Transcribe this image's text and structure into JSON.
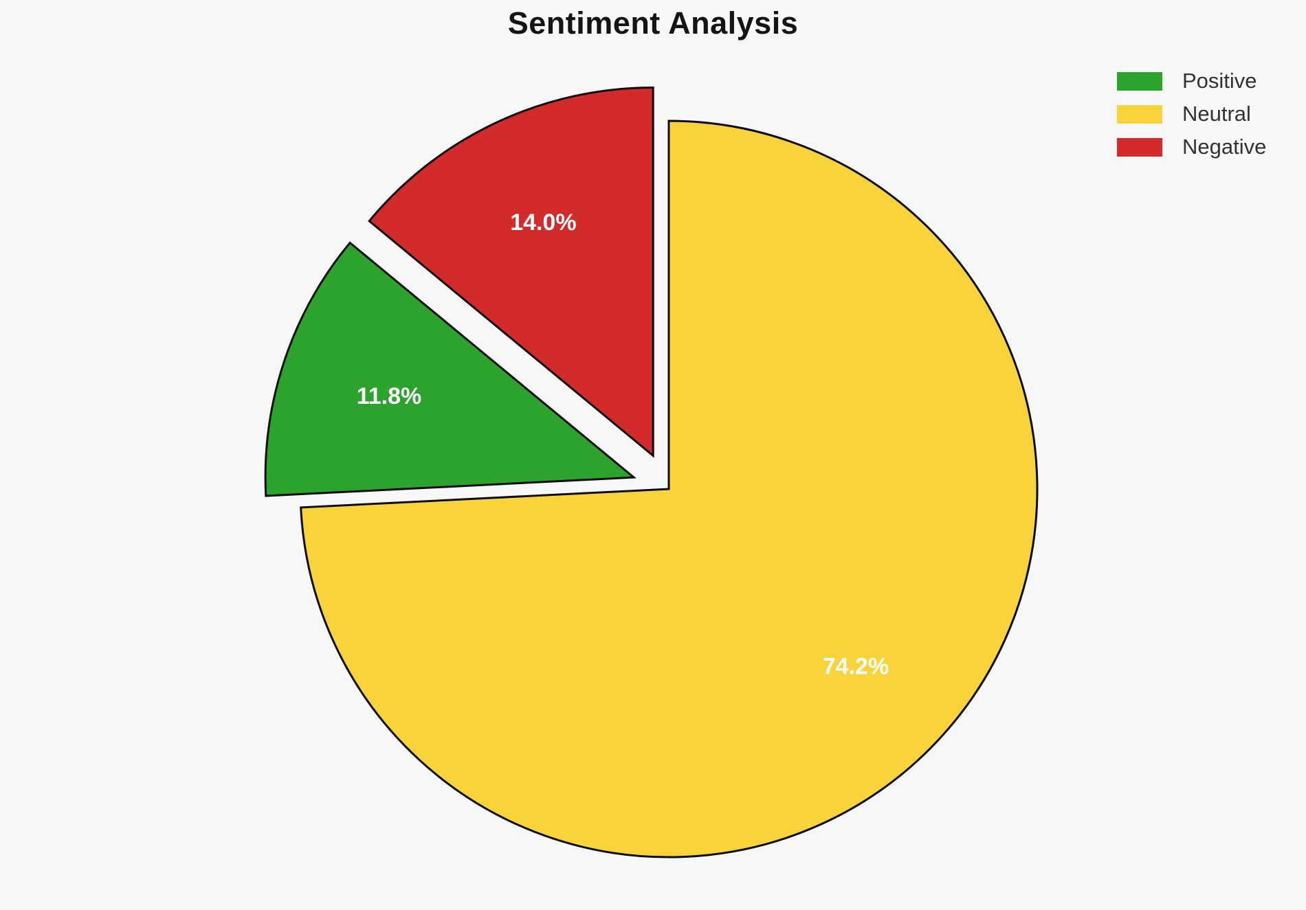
{
  "page": {
    "background": "#F7F7F7"
  },
  "chart_data": {
    "type": "pie",
    "title": "Sentiment Analysis",
    "slices": [
      {
        "label": "Positive",
        "value": 11.8,
        "pct_label": "11.8%",
        "color": "#2CA32C",
        "explode": 0.1
      },
      {
        "label": "Neutral",
        "value": 74.2,
        "pct_label": "74.2%",
        "color": "#F8D33A",
        "explode": 0.0
      },
      {
        "label": "Negative",
        "value": 14.0,
        "pct_label": "14.0%",
        "color": "#D32B2B",
        "explode": 0.1
      }
    ],
    "draw_order": [
      "Negative",
      "Positive",
      "Neutral"
    ],
    "start_angle": 90,
    "direction": "counterclockwise",
    "legend": {
      "position": "upper-right",
      "entries": [
        "Positive",
        "Neutral",
        "Negative"
      ]
    },
    "style": {
      "edge_color": "#0D0D0D",
      "edge_width": 3,
      "pct_label_color": "#FFFFFF",
      "title_color": "#141414",
      "legend_text_color": "#333333"
    }
  }
}
